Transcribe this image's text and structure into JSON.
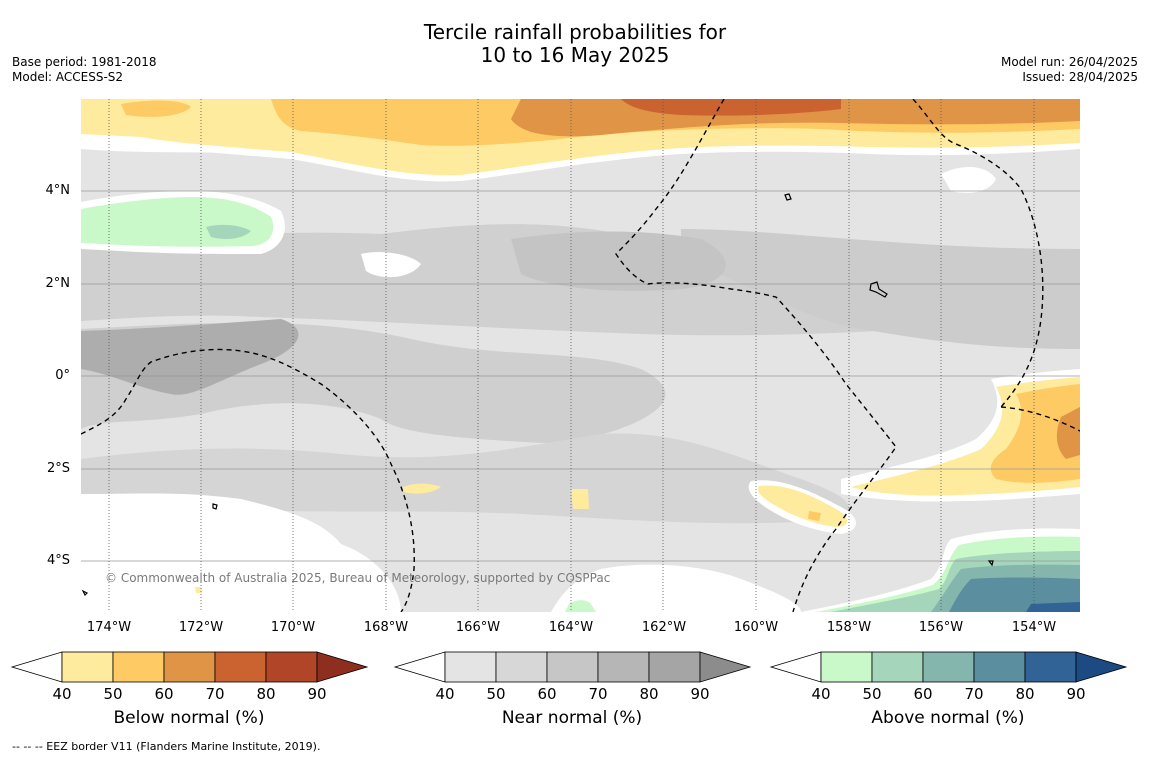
{
  "title": {
    "line1": "Tercile rainfall probabilities for",
    "line2": "10 to 16 May 2025"
  },
  "meta_left": {
    "base_period": "Base period: 1981-2018",
    "model": "Model: ACCESS-S2"
  },
  "meta_right": {
    "model_run": "Model run: 26/04/2025",
    "issued": "Issued: 28/04/2025"
  },
  "map": {
    "copyright": "© Commonwealth of Australia 2025, Bureau of Meteorology, supported by COSPPac",
    "lat_ticks": [
      "4°N",
      "2°N",
      "0°",
      "2°S",
      "4°S"
    ],
    "lon_ticks": [
      "174°W",
      "172°W",
      "170°W",
      "168°W",
      "166°W",
      "164°W",
      "162°W",
      "160°W",
      "158°W",
      "156°W",
      "154°W"
    ],
    "background_color": "#e4e4e4"
  },
  "colorbars": {
    "below": {
      "label": "Below normal (%)",
      "ticks": [
        "40",
        "50",
        "60",
        "70",
        "80",
        "90"
      ],
      "colors": [
        "#feeb9e",
        "#fdca64",
        "#e09446",
        "#cb6331",
        "#b04627",
        "#8e2e1e"
      ]
    },
    "near": {
      "label": "Near normal (%)",
      "ticks": [
        "40",
        "50",
        "60",
        "70",
        "80",
        "90"
      ],
      "colors": [
        "#e4e4e4",
        "#d7d7d7",
        "#c6c6c6",
        "#b6b6b6",
        "#a5a5a5",
        "#8c8c8c"
      ]
    },
    "above": {
      "label": "Above normal (%)",
      "ticks": [
        "40",
        "50",
        "60",
        "70",
        "80",
        "90"
      ],
      "colors": [
        "#c9f8c9",
        "#a5d6bc",
        "#84b6ae",
        "#5b8f9f",
        "#316397",
        "#1c4a82"
      ]
    }
  },
  "footer": "--  --  -- EEZ border V11 (Flanders Marine Institute, 2019)."
}
